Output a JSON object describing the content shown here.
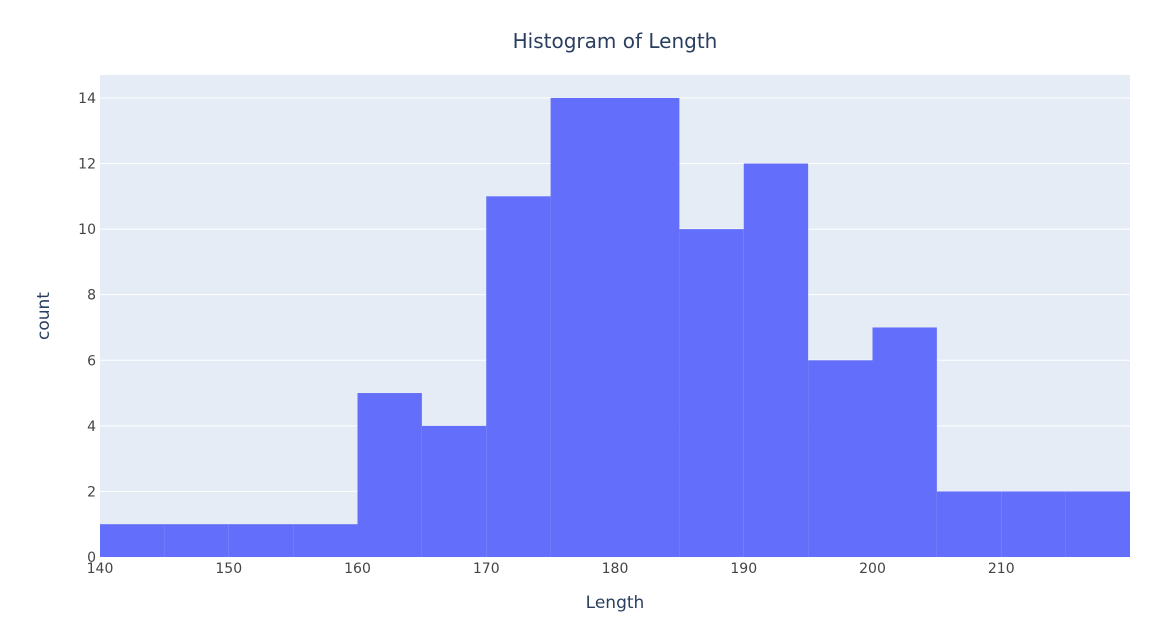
{
  "chart_data": {
    "type": "bar",
    "title": "Histogram of Length",
    "xlabel": "Length",
    "ylabel": "count",
    "bin_edges": [
      140,
      145,
      150,
      155,
      160,
      165,
      170,
      175,
      180,
      185,
      190,
      195,
      200,
      205,
      210,
      215,
      220
    ],
    "values": [
      1,
      1,
      1,
      1,
      5,
      4,
      11,
      14,
      14,
      10,
      12,
      6,
      7,
      2,
      2,
      2
    ],
    "xlim": [
      140,
      220
    ],
    "ylim": [
      0,
      14.7
    ],
    "x_ticks": [
      "140",
      "150",
      "160",
      "170",
      "180",
      "190",
      "200",
      "210"
    ],
    "y_ticks": [
      "0",
      "2",
      "4",
      "6",
      "8",
      "10",
      "12",
      "14"
    ],
    "grid": true,
    "colors": {
      "bar": "#636efa",
      "plot_background": "#e5ecf6",
      "grid": "#ffffff",
      "title": "#2a3f5f",
      "tick": "#444444"
    }
  }
}
